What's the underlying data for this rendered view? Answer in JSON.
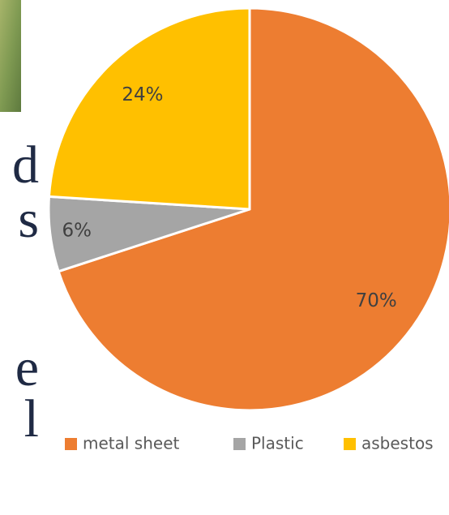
{
  "text_fragments": [
    "d",
    "s",
    "e",
    "l"
  ],
  "chart_data": {
    "type": "pie",
    "categories": [
      "metal sheet",
      "Plastic",
      "asbestos"
    ],
    "values": [
      70,
      6,
      24
    ],
    "value_labels": [
      "70%",
      "6%",
      "24%"
    ],
    "colors": [
      "#ED7D31",
      "#A5A5A5",
      "#FFC000"
    ],
    "legend": "bottom"
  }
}
